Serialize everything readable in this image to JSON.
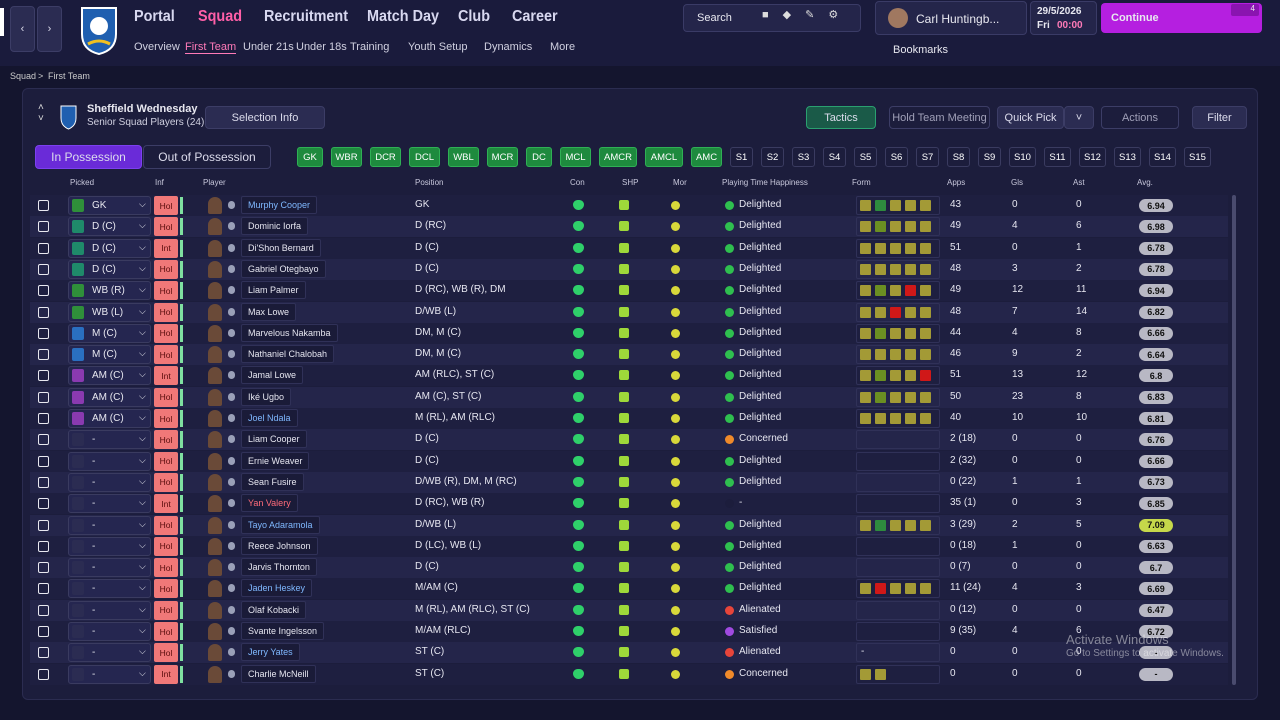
{
  "header": {
    "nav": [
      "Portal",
      "Squad",
      "Recruitment",
      "Match Day",
      "Club",
      "Career"
    ],
    "subnav": [
      "Overview",
      "First Team",
      "Under 21s",
      "Under 18s",
      "Training",
      "Youth Setup",
      "Dynamics",
      "More"
    ],
    "search": "Search",
    "manager": "Carl Huntingb...",
    "date": "29/5/2026",
    "day": "Fri",
    "time": "00:00",
    "continue": "Continue",
    "badge": "4",
    "bookmarks": "Bookmarks"
  },
  "breadcrumb": [
    "Squad",
    "First Team"
  ],
  "team": {
    "name": "Sheffield Wednesday",
    "subtitle": "Senior Squad Players (24)",
    "selection_info": "Selection Info"
  },
  "buttons": {
    "tactics": "Tactics",
    "meeting": "Hold Team Meeting",
    "quick_pick": "Quick Pick",
    "actions": "Actions",
    "filter": "Filter"
  },
  "tabs": [
    "In Possession",
    "Out of Possession"
  ],
  "positions": [
    "GK",
    "WBR",
    "DCR",
    "DCL",
    "WBL",
    "MCR",
    "DC",
    "MCL",
    "AMCR",
    "AMCL",
    "AMC",
    "S1",
    "S2",
    "S3",
    "S4",
    "S5",
    "S6",
    "S7",
    "S8",
    "S9",
    "S10",
    "S11",
    "S12",
    "S13",
    "S14",
    "S15"
  ],
  "columns": [
    "Picked",
    "Inf",
    "Player",
    "Position",
    "Con",
    "SHP",
    "Mor",
    "Playing Time Happiness",
    "Form",
    "Apps",
    "Gls",
    "Ast",
    "Avg."
  ],
  "table": {
    "rows": [
      {
        "picked": "GK",
        "chip": "#2f8f3a",
        "inf": "Hol",
        "name": "Murphy Cooper",
        "name_color": "#7fb8ff",
        "position": "GK",
        "happiness": "Delighted",
        "happy_color": "#2fbf4f",
        "form": [
          "#a39a36",
          "#2e8b3e",
          "#a39a36",
          "#a39a36",
          "#a39a36"
        ],
        "apps": "43",
        "gls": 0,
        "ast": 0,
        "avg": 6.94
      },
      {
        "picked": "D (C)",
        "chip": "#1f8a6a",
        "inf": "Hol",
        "name": "Dominic Iorfa",
        "name_color": "#e6e6f0",
        "position": "D (RC)",
        "happiness": "Delighted",
        "happy_color": "#2fbf4f",
        "form": [
          "#a39a36",
          "#6b8f22",
          "#a39a36",
          "#a39a36",
          "#a39a36"
        ],
        "apps": "49",
        "gls": 4,
        "ast": 6,
        "avg": 6.98
      },
      {
        "picked": "D (C)",
        "chip": "#1f8a6a",
        "inf": "Int",
        "name": "Di'Shon Bernard",
        "name_color": "#e6e6f0",
        "position": "D (C)",
        "happiness": "Delighted",
        "happy_color": "#2fbf4f",
        "form": [
          "#a39a36",
          "#a39a36",
          "#a39a36",
          "#a39a36",
          "#a39a36"
        ],
        "apps": "51",
        "gls": 0,
        "ast": 1,
        "avg": 6.78
      },
      {
        "picked": "D (C)",
        "chip": "#1f8a6a",
        "inf": "Hol",
        "name": "Gabriel Otegbayo",
        "name_color": "#e6e6f0",
        "position": "D (C)",
        "happiness": "Delighted",
        "happy_color": "#2fbf4f",
        "form": [
          "#a39a36",
          "#a39a36",
          "#a39a36",
          "#a39a36",
          "#a39a36"
        ],
        "apps": "48",
        "gls": 3,
        "ast": 2,
        "avg": 6.78
      },
      {
        "picked": "WB (R)",
        "chip": "#2f8f3a",
        "inf": "Hol",
        "name": "Liam Palmer",
        "name_color": "#e6e6f0",
        "position": "D (RC), WB (R), DM",
        "happiness": "Delighted",
        "happy_color": "#2fbf4f",
        "form": [
          "#a39a36",
          "#6b8f22",
          "#a39a36",
          "#d01818",
          "#a39a36"
        ],
        "apps": "49",
        "gls": 12,
        "ast": 11,
        "avg": 6.94
      },
      {
        "picked": "WB (L)",
        "chip": "#2f8f3a",
        "inf": "Hol",
        "name": "Max Lowe",
        "name_color": "#e6e6f0",
        "position": "D/WB (L)",
        "happiness": "Delighted",
        "happy_color": "#2fbf4f",
        "form": [
          "#a39a36",
          "#a39a36",
          "#d01818",
          "#a39a36",
          "#a39a36"
        ],
        "apps": "48",
        "gls": 7,
        "ast": 14,
        "avg": 6.82
      },
      {
        "picked": "M (C)",
        "chip": "#2a6fc0",
        "inf": "Hol",
        "name": "Marvelous Nakamba",
        "name_color": "#e6e6f0",
        "position": "DM, M (C)",
        "happiness": "Delighted",
        "happy_color": "#2fbf4f",
        "form": [
          "#a39a36",
          "#6b8f22",
          "#a39a36",
          "#a39a36",
          "#a39a36"
        ],
        "apps": "44",
        "gls": 4,
        "ast": 8,
        "avg": 6.66
      },
      {
        "picked": "M (C)",
        "chip": "#2a6fc0",
        "inf": "Hol",
        "name": "Nathaniel Chalobah",
        "name_color": "#e6e6f0",
        "position": "DM, M (C)",
        "happiness": "Delighted",
        "happy_color": "#2fbf4f",
        "form": [
          "#a39a36",
          "#a39a36",
          "#a39a36",
          "#a39a36",
          "#a39a36"
        ],
        "apps": "46",
        "gls": 9,
        "ast": 2,
        "avg": 6.64
      },
      {
        "picked": "AM (C)",
        "chip": "#8a3ab0",
        "inf": "Int",
        "name": "Jamal Lowe",
        "name_color": "#e6e6f0",
        "position": "AM (RLC), ST (C)",
        "happiness": "Delighted",
        "happy_color": "#2fbf4f",
        "form": [
          "#a39a36",
          "#6b8f22",
          "#a39a36",
          "#a39a36",
          "#d01818"
        ],
        "apps": "51",
        "gls": 13,
        "ast": 12,
        "avg": 6.8
      },
      {
        "picked": "AM (C)",
        "chip": "#8a3ab0",
        "inf": "Hol",
        "name": "Iké Ugbo",
        "name_color": "#e6e6f0",
        "position": "AM (C), ST (C)",
        "happiness": "Delighted",
        "happy_color": "#2fbf4f",
        "form": [
          "#a39a36",
          "#6b8f22",
          "#a39a36",
          "#a39a36",
          "#a39a36"
        ],
        "apps": "50",
        "gls": 23,
        "ast": 8,
        "avg": 6.83
      },
      {
        "picked": "AM (C)",
        "chip": "#8a3ab0",
        "inf": "Hol",
        "name": "Joel Ndala",
        "name_color": "#7fb8ff",
        "position": "M (RL), AM (RLC)",
        "happiness": "Delighted",
        "happy_color": "#2fbf4f",
        "form": [
          "#a39a36",
          "#a39a36",
          "#a39a36",
          "#a39a36",
          "#a39a36"
        ],
        "apps": "40",
        "gls": 10,
        "ast": 10,
        "avg": 6.81
      },
      {
        "picked": "-",
        "chip": "#2b2c52",
        "inf": "Hol",
        "name": "Liam Cooper",
        "name_color": "#e6e6f0",
        "position": "D (C)",
        "happiness": "Concerned",
        "happy_color": "#f08a2a",
        "form": [],
        "apps": "2 (18)",
        "gls": 0,
        "ast": 0,
        "avg": 6.76
      },
      {
        "picked": "-",
        "chip": "#2b2c52",
        "inf": "Hol",
        "name": "Ernie Weaver",
        "name_color": "#e6e6f0",
        "position": "D (C)",
        "happiness": "Delighted",
        "happy_color": "#2fbf4f",
        "form": [],
        "apps": "2 (32)",
        "gls": 0,
        "ast": 0,
        "avg": 6.66
      },
      {
        "picked": "-",
        "chip": "#2b2c52",
        "inf": "Hol",
        "name": "Sean Fusire",
        "name_color": "#e6e6f0",
        "position": "D/WB (R), DM, M (RC)",
        "happiness": "Delighted",
        "happy_color": "#2fbf4f",
        "form": [],
        "apps": "0 (22)",
        "gls": 1,
        "ast": 1,
        "avg": 6.73
      },
      {
        "picked": "-",
        "chip": "#2b2c52",
        "inf": "Int",
        "name": "Yan Valery",
        "name_color": "#ff6b7a",
        "position": "D (RC), WB (R)",
        "happiness": "-",
        "happy_color": "#1c1d3c",
        "form": [],
        "apps": "35 (1)",
        "gls": 0,
        "ast": 3,
        "avg": 6.85
      },
      {
        "picked": "-",
        "chip": "#2b2c52",
        "inf": "Hol",
        "name": "Tayo Adaramola",
        "name_color": "#7fb8ff",
        "position": "D/WB (L)",
        "happiness": "Delighted",
        "happy_color": "#2fbf4f",
        "form": [
          "#a39a36",
          "#2e8b3e",
          "#a39a36",
          "#a39a36",
          "#a39a36"
        ],
        "apps": "3 (29)",
        "gls": 2,
        "ast": 5,
        "avg": 7.09
      },
      {
        "picked": "-",
        "chip": "#2b2c52",
        "inf": "Hol",
        "name": "Reece Johnson",
        "name_color": "#e6e6f0",
        "position": "D (LC), WB (L)",
        "happiness": "Delighted",
        "happy_color": "#2fbf4f",
        "form": [],
        "apps": "0 (18)",
        "gls": 1,
        "ast": 0,
        "avg": 6.63
      },
      {
        "picked": "-",
        "chip": "#2b2c52",
        "inf": "Hol",
        "name": "Jarvis Thornton",
        "name_color": "#e6e6f0",
        "position": "D (C)",
        "happiness": "Delighted",
        "happy_color": "#2fbf4f",
        "form": [],
        "apps": "0 (7)",
        "gls": 0,
        "ast": 0,
        "avg": 6.7
      },
      {
        "picked": "-",
        "chip": "#2b2c52",
        "inf": "Hol",
        "name": "Jaden Heskey",
        "name_color": "#7fb8ff",
        "position": "M/AM (C)",
        "happiness": "Delighted",
        "happy_color": "#2fbf4f",
        "form": [
          "#a39a36",
          "#d01818",
          "#a39a36",
          "#a39a36",
          "#a39a36"
        ],
        "apps": "11 (24)",
        "gls": 4,
        "ast": 3,
        "avg": 6.69
      },
      {
        "picked": "-",
        "chip": "#2b2c52",
        "inf": "Hol",
        "name": "Olaf Kobacki",
        "name_color": "#e6e6f0",
        "position": "M (RL), AM (RLC), ST (C)",
        "happiness": "Alienated",
        "happy_color": "#e8453a",
        "form": [],
        "apps": "0 (12)",
        "gls": 0,
        "ast": 0,
        "avg": 6.47
      },
      {
        "picked": "-",
        "chip": "#2b2c52",
        "inf": "Hol",
        "name": "Svante Ingelsson",
        "name_color": "#e6e6f0",
        "position": "M/AM (RLC)",
        "happiness": "Satisfied",
        "happy_color": "#a04ae0",
        "form": [],
        "apps": "9 (35)",
        "gls": 4,
        "ast": 6,
        "avg": 6.72
      },
      {
        "picked": "-",
        "chip": "#2b2c52",
        "inf": "Hol",
        "name": "Jerry Yates",
        "name_color": "#7fb8ff",
        "position": "ST (C)",
        "happiness": "Alienated",
        "happy_color": "#e8453a",
        "form": "-",
        "apps": "0",
        "gls": 0,
        "ast": 0,
        "avg": "-"
      },
      {
        "picked": "-",
        "chip": "#2b2c52",
        "inf": "Int",
        "name": "Charlie McNeill",
        "name_color": "#e6e6f0",
        "position": "ST (C)",
        "happiness": "Concerned",
        "happy_color": "#f08a2a",
        "form": [
          "#a39a36",
          "#a39a36"
        ],
        "apps": "0",
        "gls": 0,
        "ast": 0,
        "avg": "-"
      }
    ]
  },
  "watermark": {
    "title": "Activate Windows",
    "text": "Go to Settings to activate Windows."
  }
}
